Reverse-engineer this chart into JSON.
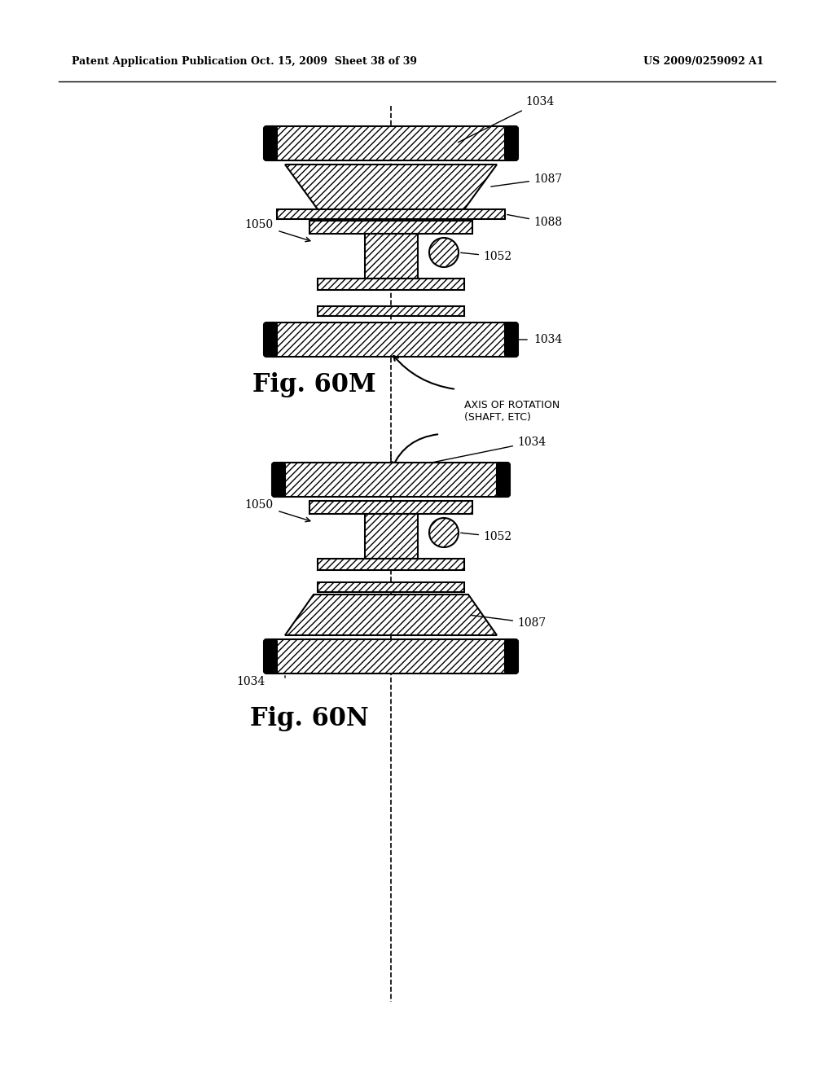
{
  "bg_color": "#ffffff",
  "header_left": "Patent Application Publication",
  "header_mid": "Oct. 15, 2009  Sheet 38 of 39",
  "header_right": "US 2009/0259092 A1",
  "fig60m_label": "Fig. 60M",
  "fig60n_label": "Fig. 60N",
  "axis_label": "AXIS OF ROTATION\n(SHAFT, ETC)",
  "labels": {
    "1034_top": "1034",
    "1087_top": "1087",
    "1088": "1088",
    "1050_top": "1050",
    "1052_top": "1052",
    "1034_bottom": "1034",
    "1034_top2": "1034",
    "1050_bottom": "1050",
    "1052_bottom": "1052",
    "1087_bottom": "1087",
    "1034_bot2": "1034"
  }
}
